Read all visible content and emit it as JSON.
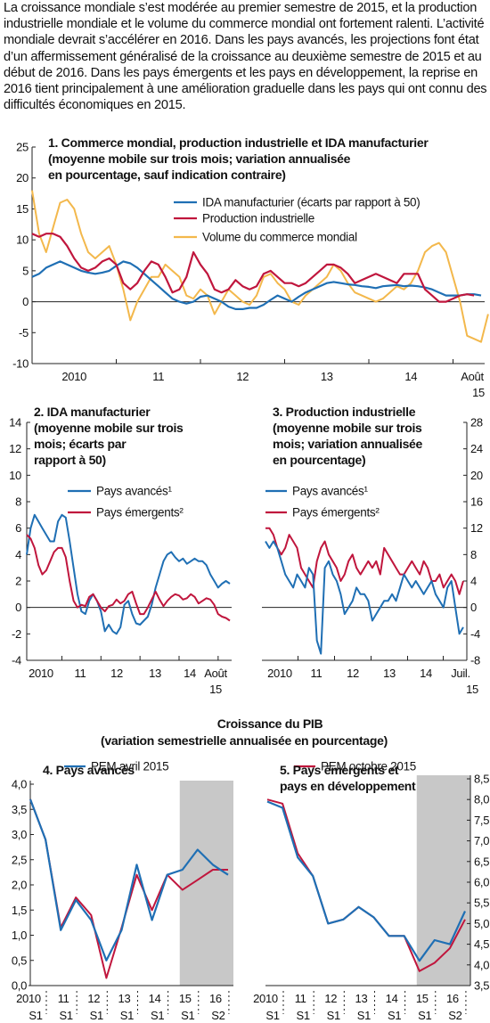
{
  "intro": "La croissance mondiale s’est modérée au premier semestre de 2015, et la production industrielle mondiale et le volume du commerce mondial ont fortement ralenti. L’activité mondiale devrait s’accélérer en 2016. Dans les pays avancés, les projections font état d’un affermissement généralisé de la croissance au deuxième semestre de 2015 et au début de 2016. Dans les pays émergents et les pays en développement, la reprise en 2016 tient principalement à une amélioration graduelle dans les pays qui ont connu des difficultés économiques en 2015.",
  "colors": {
    "blue": "#1f6fb4",
    "red": "#c0163d",
    "yellow": "#f3b84c",
    "shade": "#c8c8c8"
  },
  "gdp_heading": {
    "line1": "Croissance du PIB",
    "line2": "(variation semestrielle annualisée en pourcentage)",
    "legend": [
      "PEM avril 2015",
      "PEM octobre 2015"
    ]
  },
  "chart_data": [
    {
      "id": "c1",
      "type": "line",
      "title": [
        "1. Commerce mondial, production industrielle et IDA manufacturier",
        "(moyenne mobile sur trois mois; variation annualisée",
        "en pourcentage, sauf indication contraire)"
      ],
      "ylim": [
        -10,
        25
      ],
      "yticks": [
        "25",
        "20",
        "15",
        "10",
        "5",
        "0",
        "-5",
        "-10"
      ],
      "xlabels": [
        "2010",
        "11",
        "12",
        "13",
        "14",
        "Août"
      ],
      "xlabel_tail": "15",
      "x_start": "2010-01",
      "x_end": "2015-08",
      "series": [
        {
          "name": "IDA manufacturier (écarts par rapport à 50)",
          "color": "blue",
          "values": [
            4,
            4.5,
            5.5,
            6,
            6.5,
            6,
            5.5,
            5,
            4.7,
            4.5,
            4.7,
            5,
            5.8,
            6.5,
            6.2,
            5.5,
            4.5,
            3.5,
            2.5,
            1.5,
            0.5,
            0,
            -0.3,
            0,
            0.8,
            1,
            0.5,
            0,
            -0.8,
            -1.2,
            -1.2,
            -1,
            -1,
            -0.5,
            0.3,
            1,
            0.5,
            0,
            0.8,
            1.5,
            2,
            2.5,
            3,
            3.2,
            3,
            2.8,
            2.7,
            2.5,
            2.4,
            2.2,
            2.5,
            2.6,
            2.7,
            2.5,
            2.6,
            2.5,
            2.3,
            2,
            1.5,
            1,
            1,
            1,
            1.2,
            1.2,
            1
          ]
        },
        {
          "name": "Production industrielle",
          "color": "red",
          "values": [
            11,
            10.5,
            11,
            11,
            10.5,
            9,
            7,
            5.5,
            5,
            5.5,
            6.5,
            7,
            6,
            3,
            2,
            3,
            5,
            6.5,
            6,
            4,
            1.5,
            2,
            4,
            8,
            6,
            4.5,
            2,
            1.5,
            2,
            3.5,
            2.5,
            2,
            2.5,
            4.5,
            5,
            4,
            3,
            3,
            2.5,
            3,
            4,
            5,
            6,
            6,
            5.5,
            4.5,
            3,
            3.5,
            4,
            4.5,
            4,
            3.5,
            3,
            4.5,
            4.5,
            4.5,
            2,
            1,
            0,
            0,
            0.5,
            1,
            1.2,
            1
          ]
        },
        {
          "name": "Volume du commerce mondial",
          "color": "yellow",
          "values": [
            18,
            11,
            8,
            12,
            16,
            16.5,
            15,
            11,
            8,
            7,
            8,
            9,
            6,
            2,
            -3,
            0,
            2,
            4,
            4,
            6,
            5,
            4,
            1,
            0.5,
            2,
            1,
            -2,
            0,
            2,
            1,
            0,
            -0.5,
            1,
            4,
            4.5,
            3,
            2,
            0,
            -0.5,
            1,
            2,
            3,
            4,
            6,
            5,
            3,
            1.5,
            1,
            0.5,
            0,
            0.5,
            1.5,
            2.5,
            2,
            3,
            5,
            8,
            9,
            9.5,
            8,
            4,
            0,
            -5.5,
            -6,
            -6.5,
            -2
          ]
        }
      ]
    },
    {
      "id": "c2",
      "type": "line",
      "title": [
        "2. IDA manufacturier",
        "(moyenne mobile sur trois",
        "mois; écarts par",
        "rapport à 50)"
      ],
      "ylim": [
        -4,
        14
      ],
      "yticks": [
        "14",
        "12",
        "10",
        "8",
        "6",
        "4",
        "2",
        "0",
        "-2",
        "-4"
      ],
      "xlabels": [
        "2010",
        "11",
        "12",
        "13",
        "14",
        "Août"
      ],
      "xlabel_tail": "15",
      "x_start": "2010-01",
      "x_end": "2015-08",
      "series": [
        {
          "name": "Pays avancés¹",
          "color": "blue",
          "values": [
            4,
            6,
            7,
            6.5,
            6,
            5.5,
            5,
            5,
            6.5,
            7,
            6.8,
            5,
            3,
            1,
            -0.3,
            -0.5,
            0.5,
            1,
            0.5,
            -0.3,
            -1.8,
            -1.3,
            -1.8,
            -2,
            -1.5,
            0.2,
            0.5,
            -0.5,
            -1.2,
            -1.3,
            -1,
            -0.7,
            0.2,
            1.5,
            2.5,
            3.5,
            4,
            4.2,
            3.8,
            3.5,
            3.7,
            3.3,
            3.5,
            3.7,
            3.5,
            3.5,
            3.2,
            2.5,
            2,
            1.5,
            1.8,
            2,
            1.8
          ]
        },
        {
          "name": "Pays émergents²",
          "color": "red",
          "values": [
            5.5,
            5.2,
            4.5,
            3.2,
            2.5,
            2.8,
            3.5,
            4.2,
            4.5,
            4.5,
            3.8,
            2,
            0.5,
            0,
            0.2,
            0.1,
            0.8,
            1,
            0.5,
            0,
            -0.3,
            0.1,
            0.2,
            0.6,
            0.3,
            0.5,
            1,
            1.2,
            0.3,
            -0.5,
            -0.5,
            0,
            0.6,
            1.2,
            0.6,
            0.1,
            0.5,
            0.8,
            1,
            0.9,
            0.6,
            0.7,
            1,
            0.8,
            0.3,
            0.5,
            0.7,
            0.6,
            0.2,
            -0.5,
            -0.7,
            -0.8,
            -1
          ]
        }
      ]
    },
    {
      "id": "c3",
      "type": "line",
      "title": [
        "3. Production industrielle",
        "(moyenne mobile sur trois",
        "mois; variation annualisée",
        "en pourcentage)"
      ],
      "ylim": [
        -8,
        28
      ],
      "yticks": [
        "28",
        "24",
        "20",
        "16",
        "12",
        "8",
        "4",
        "0",
        "-4",
        "-8"
      ],
      "xlabels": [
        "2010",
        "11",
        "12",
        "13",
        "14",
        "Juil."
      ],
      "xlabel_tail": "15",
      "x_start": "2010-01",
      "x_end": "2015-07",
      "series": [
        {
          "name": "Pays avancés¹",
          "color": "blue",
          "values": [
            10,
            9,
            10,
            9,
            7,
            5,
            4,
            3,
            5,
            4,
            3,
            6,
            5,
            -5,
            -7,
            6,
            7,
            5,
            4,
            2,
            -1,
            0,
            1,
            3,
            2,
            2,
            1,
            -2,
            -1,
            0,
            1,
            1,
            2,
            1,
            3,
            5,
            4,
            3,
            4,
            3,
            2,
            3,
            4,
            2,
            1,
            0,
            3,
            4,
            0,
            -4,
            -3
          ]
        },
        {
          "name": "Pays émergents²",
          "color": "red",
          "values": [
            12,
            12,
            11,
            9,
            8,
            9,
            11,
            10,
            9,
            6,
            5,
            4,
            3,
            7,
            9,
            10,
            8,
            7,
            6,
            4,
            5,
            7,
            8,
            6,
            5,
            6,
            7,
            6,
            7,
            5,
            9,
            8,
            7,
            6,
            5,
            5,
            6,
            7,
            6,
            5,
            7,
            6,
            4,
            4,
            5,
            3,
            4,
            5,
            4,
            2,
            4
          ]
        }
      ]
    },
    {
      "id": "c4",
      "type": "line",
      "title": [
        "4. Pays avancés"
      ],
      "ylim": [
        0,
        4
      ],
      "yticks": [
        "4,0",
        "3,5",
        "3,0",
        "2,5",
        "2,0",
        "1,5",
        "1,0",
        "0,5",
        "0,0"
      ],
      "xlabels_top": [
        "2010",
        "11",
        "12",
        "13",
        "14",
        "15",
        "16"
      ],
      "xlabels_bottom": [
        "S1",
        "S1",
        "S1",
        "S1",
        "S1",
        "S1",
        "S2"
      ],
      "categories": [
        "2010 S1",
        "2010 S2",
        "2011 S1",
        "2011 S2",
        "2012 S1",
        "2012 S2",
        "2013 S1",
        "2013 S2",
        "2014 S1",
        "2014 S2",
        "2015 S1",
        "2015 S2",
        "2016 S1",
        "2016 S2"
      ],
      "projection_start": "2015 S1",
      "series": [
        {
          "name": "PEM avril 2015",
          "color": "blue",
          "values": [
            3.7,
            2.9,
            1.1,
            1.7,
            1.3,
            0.5,
            1.1,
            2.4,
            1.3,
            2.2,
            2.3,
            2.7,
            2.4,
            2.2
          ]
        },
        {
          "name": "PEM octobre 2015",
          "color": "red",
          "values": [
            3.7,
            2.9,
            1.15,
            1.75,
            1.4,
            0.15,
            1.15,
            2.2,
            1.5,
            2.2,
            1.9,
            2.1,
            2.3,
            2.3
          ]
        }
      ]
    },
    {
      "id": "c5",
      "type": "line",
      "title": [
        "5. Pays émergents et",
        "pays en développement"
      ],
      "ylim": [
        3.5,
        8.5
      ],
      "yticks": [
        "8,5",
        "8,0",
        "7,5",
        "7,0",
        "6,5",
        "6,0",
        "5,5",
        "5,0",
        "4,5",
        "4,0",
        "3,5"
      ],
      "xlabels_top": [
        "2010",
        "11",
        "12",
        "13",
        "14",
        "15",
        "16"
      ],
      "xlabels_bottom": [
        "S1",
        "S1",
        "S1",
        "S1",
        "S1",
        "S1",
        "S2"
      ],
      "categories": [
        "2010 S1",
        "2010 S2",
        "2011 S1",
        "2011 S2",
        "2012 S1",
        "2012 S2",
        "2013 S1",
        "2013 S2",
        "2014 S1",
        "2014 S2",
        "2015 S1",
        "2015 S2",
        "2016 S1",
        "2016 S2"
      ],
      "projection_start": "2015 S1",
      "series": [
        {
          "name": "PEM avril 2015",
          "color": "blue",
          "values": [
            7.95,
            7.8,
            6.6,
            6.15,
            5.0,
            5.1,
            5.4,
            5.15,
            4.7,
            4.7,
            4.1,
            4.6,
            4.5,
            5.3
          ]
        },
        {
          "name": "PEM octobre 2015",
          "color": "red",
          "values": [
            8.0,
            7.9,
            6.7,
            6.15,
            5.0,
            5.1,
            5.4,
            5.15,
            4.7,
            4.7,
            3.85,
            4.05,
            4.4,
            5.1
          ]
        }
      ]
    }
  ]
}
